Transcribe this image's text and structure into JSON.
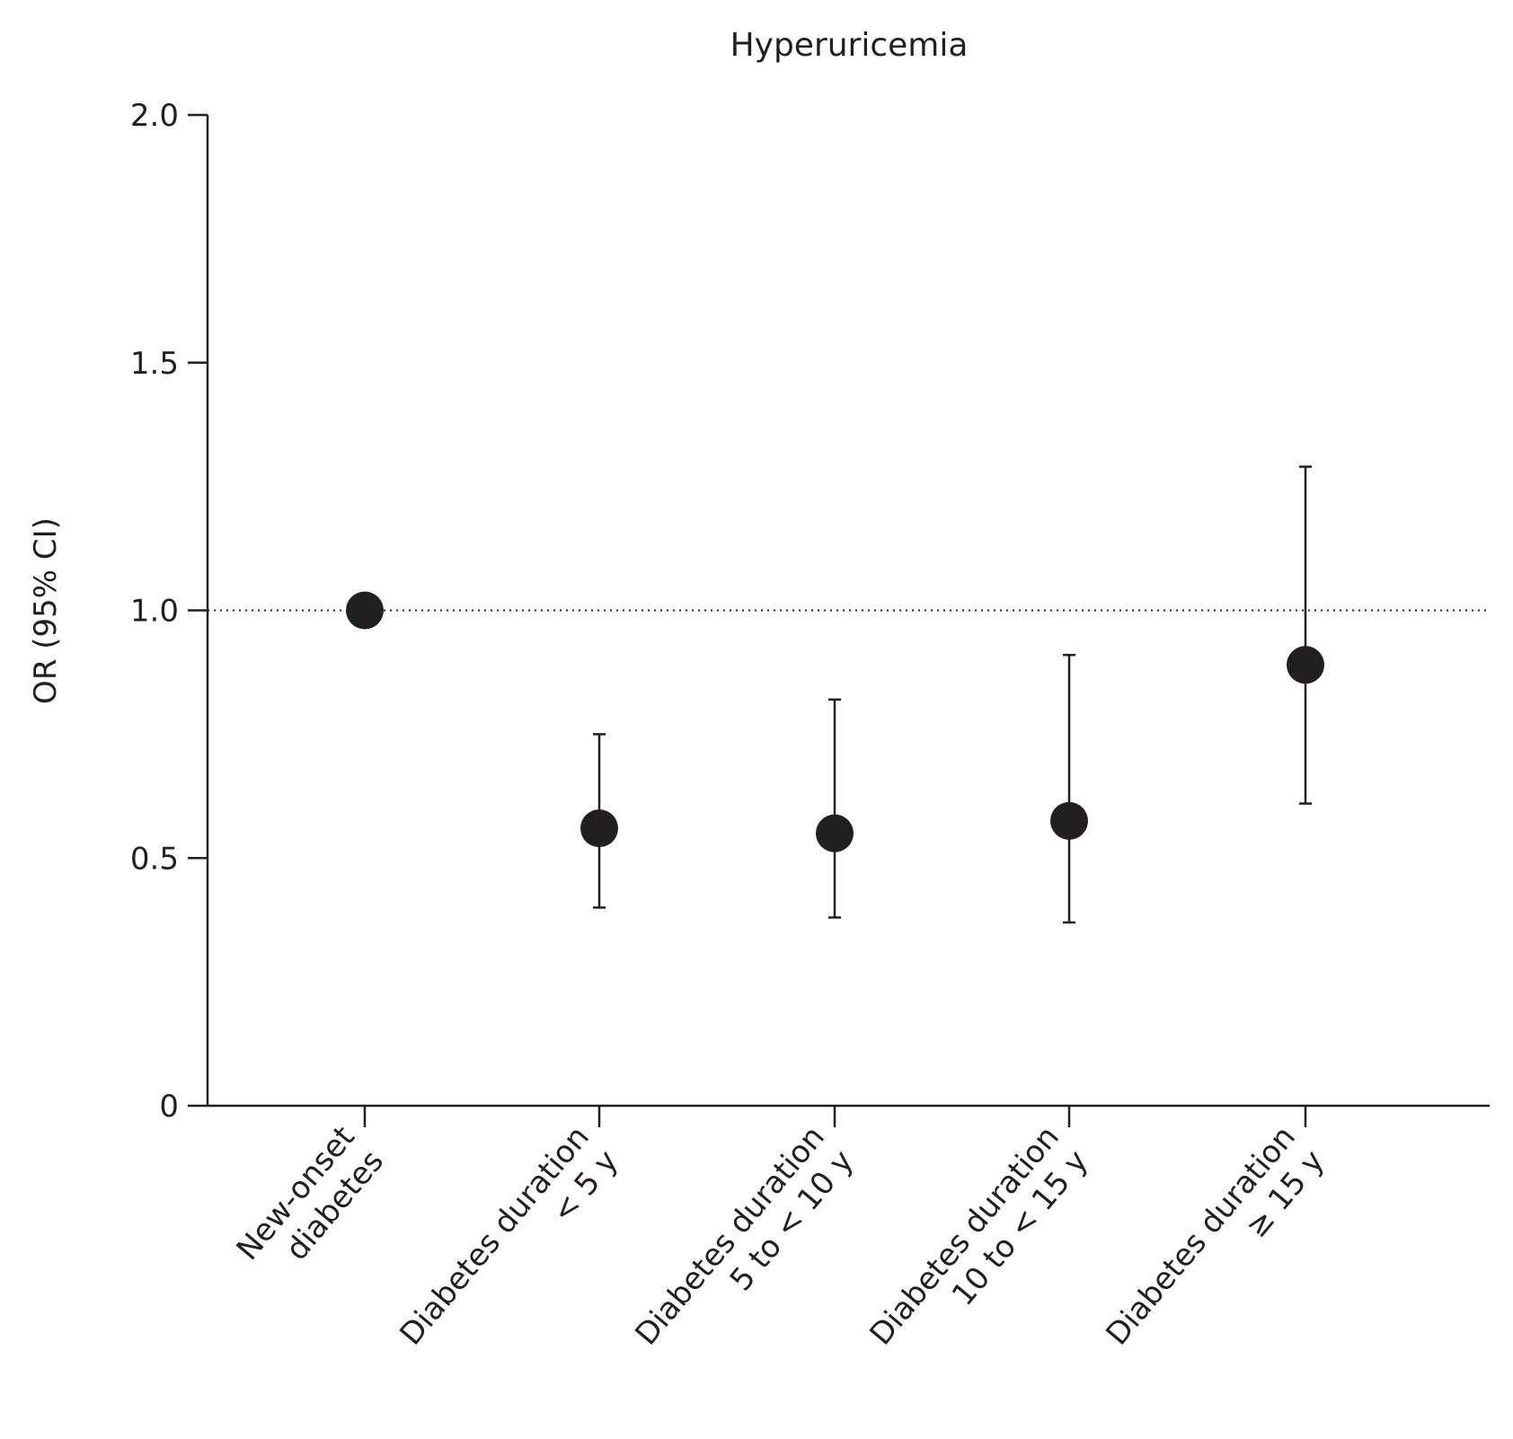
{
  "chart_data": {
    "type": "scatter",
    "title": "Hyperuricemia",
    "xlabel": "",
    "ylabel": "OR (95% CI)",
    "ylim": [
      0,
      2.0
    ],
    "yticks": [
      "0",
      "0.5",
      "1.0",
      "1.5",
      "2.0"
    ],
    "ytick_values": [
      0,
      0.5,
      1.0,
      1.5,
      2.0
    ],
    "reference_line": 1.0,
    "grid": false,
    "point_color": "#231f20",
    "categories": [
      [
        "New-onset",
        "diabetes"
      ],
      [
        "Diabetes duration",
        "< 5 y"
      ],
      [
        "Diabetes duration",
        "5 to < 10 y"
      ],
      [
        "Diabetes duration",
        "10 to < 15 y"
      ],
      [
        "Diabetes duration",
        "≥ 15 y"
      ]
    ],
    "values": [
      1.0,
      0.56,
      0.55,
      0.575,
      0.89
    ],
    "ci_lower": [
      null,
      0.4,
      0.38,
      0.37,
      0.61
    ],
    "ci_upper": [
      null,
      0.75,
      0.82,
      0.91,
      1.29
    ]
  }
}
